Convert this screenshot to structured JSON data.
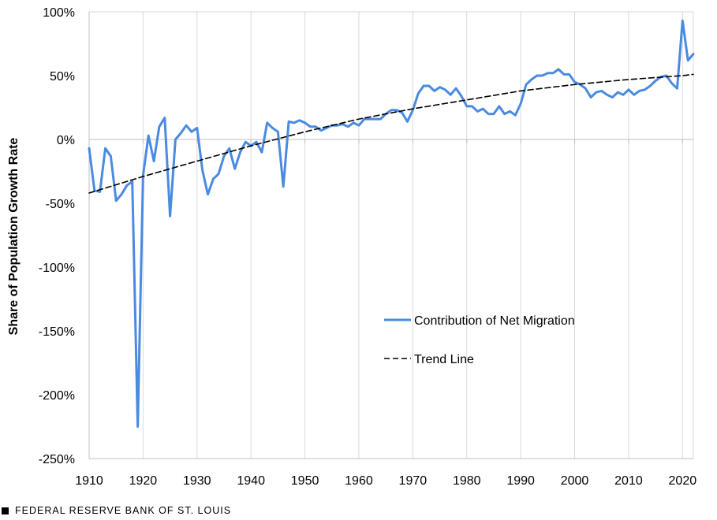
{
  "chart_data": {
    "type": "line",
    "ylabel": "Share of Population Growth Rate",
    "xlim": [
      1910,
      2022
    ],
    "ylim": [
      -250,
      100
    ],
    "x_ticks": [
      "1910",
      "1920",
      "1930",
      "1940",
      "1950",
      "1960",
      "1970",
      "1980",
      "1990",
      "2000",
      "2010",
      "2020"
    ],
    "y_ticks": [
      "100%",
      "50%",
      "0%",
      "-50%",
      "-100%",
      "-150%",
      "-200%",
      "-250%"
    ],
    "y_tick_values": [
      100,
      50,
      0,
      -50,
      -100,
      -150,
      -200,
      -250
    ],
    "x_tick_values": [
      1910,
      1920,
      1930,
      1940,
      1950,
      1960,
      1970,
      1980,
      1990,
      2000,
      2010,
      2020
    ],
    "grid": "vertical",
    "legend_position": "center-right",
    "series": [
      {
        "name": "Contribution of Net Migration",
        "color": "#4a8ae0",
        "style": "solid",
        "x": [
          1910,
          1911,
          1912,
          1913,
          1914,
          1915,
          1916,
          1917,
          1918,
          1919,
          1920,
          1921,
          1922,
          1923,
          1924,
          1925,
          1926,
          1927,
          1928,
          1929,
          1930,
          1931,
          1932,
          1933,
          1934,
          1935,
          1936,
          1937,
          1938,
          1939,
          1940,
          1941,
          1942,
          1943,
          1944,
          1945,
          1946,
          1947,
          1948,
          1949,
          1950,
          1951,
          1952,
          1953,
          1954,
          1955,
          1956,
          1957,
          1958,
          1959,
          1960,
          1961,
          1962,
          1963,
          1964,
          1965,
          1966,
          1967,
          1968,
          1969,
          1970,
          1971,
          1972,
          1973,
          1974,
          1975,
          1976,
          1977,
          1978,
          1979,
          1980,
          1981,
          1982,
          1983,
          1984,
          1985,
          1986,
          1987,
          1988,
          1989,
          1990,
          1991,
          1992,
          1993,
          1994,
          1995,
          1996,
          1997,
          1998,
          1999,
          2000,
          2001,
          2002,
          2003,
          2004,
          2005,
          2006,
          2007,
          2008,
          2009,
          2010,
          2011,
          2012,
          2013,
          2014,
          2015,
          2016,
          2017,
          2018,
          2019,
          2020,
          2021,
          2022
        ],
        "y": [
          -7,
          -40,
          -41,
          -7,
          -13,
          -48,
          -43,
          -36,
          -33,
          -225,
          -28,
          3,
          -17,
          10,
          17,
          -60,
          0,
          5,
          11,
          6,
          9,
          -24,
          -43,
          -31,
          -27,
          -13,
          -7,
          -23,
          -10,
          -2,
          -5,
          -2,
          -10,
          13,
          9,
          6,
          -37,
          14,
          13,
          15,
          13,
          10,
          10,
          7,
          9,
          11,
          11,
          12,
          10,
          13,
          11,
          16,
          16,
          16,
          16,
          20,
          23,
          23,
          21,
          14,
          23,
          36,
          42,
          42,
          38,
          41,
          39,
          35,
          40,
          34,
          26,
          26,
          22,
          24,
          20,
          20,
          26,
          20,
          22,
          19,
          28,
          43,
          47,
          50,
          50,
          52,
          52,
          55,
          51,
          51,
          45,
          43,
          40,
          33,
          37,
          38,
          35,
          33,
          37,
          35,
          39,
          35,
          38,
          39,
          42,
          46,
          49,
          50,
          44,
          40,
          93,
          62,
          67
        ]
      },
      {
        "name": "Trend Line",
        "color": "#000000",
        "style": "dashed",
        "x": [
          1910,
          1920,
          1930,
          1940,
          1950,
          1960,
          1970,
          1980,
          1990,
          2000,
          2010,
          2020,
          2022
        ],
        "y": [
          -42,
          -29,
          -17,
          -5,
          6,
          16,
          24,
          31,
          38,
          43,
          47,
          50,
          51
        ]
      }
    ]
  },
  "footer": {
    "source": "FEDERAL RESERVE BANK OF ST. LOUIS"
  }
}
